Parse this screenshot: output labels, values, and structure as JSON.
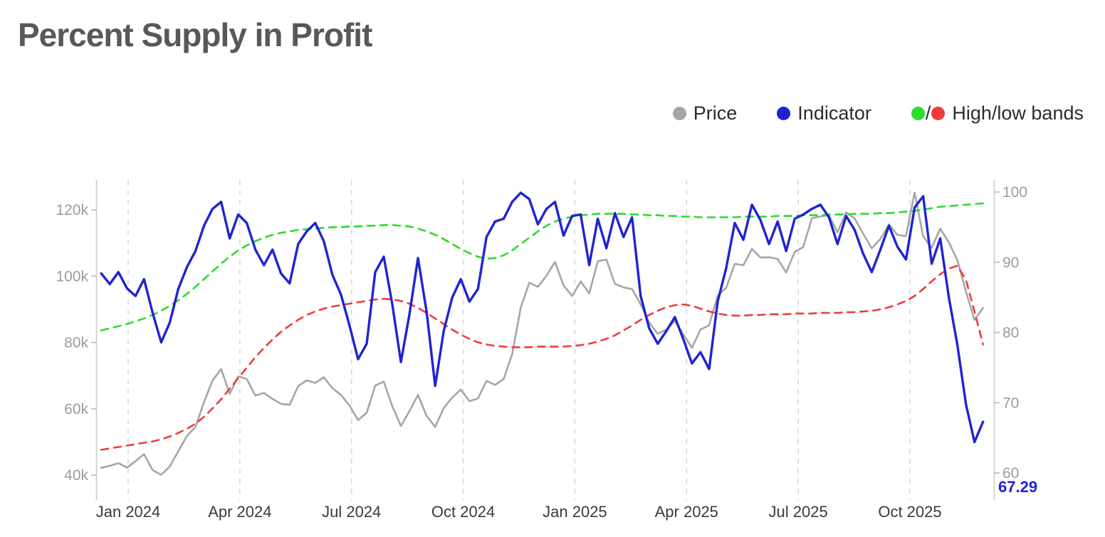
{
  "page": {
    "title": "Percent Supply in Profit",
    "background": "#ffffff"
  },
  "legend": {
    "items": [
      {
        "label": "Price",
        "color": "#a6a6a6"
      },
      {
        "label": "Indicator",
        "color": "#1f24cf"
      },
      {
        "label": "High/low bands",
        "separator": "/",
        "color_high": "#2bdc2b",
        "color_low": "#f03b3b"
      }
    ]
  },
  "chart_data": {
    "type": "line",
    "title": "Percent Supply in Profit",
    "x_start": "2023-12-10",
    "x_step_days": 7,
    "x_tick_labels": [
      "Jan 2024",
      "Apr 2024",
      "Jul 2024",
      "Oct 2024",
      "Jan 2025",
      "Apr 2025",
      "Jul 2025",
      "Oct 2025"
    ],
    "x_tick_month_offsets": [
      0,
      3,
      6,
      9,
      12,
      15,
      18,
      21
    ],
    "grid": {
      "vertical_dashed": true,
      "color": "#d8d8d8"
    },
    "left_axis": {
      "tick_labels": [
        "40k",
        "60k",
        "80k",
        "100k",
        "120k"
      ],
      "tick_values": [
        40,
        60,
        80,
        100,
        120
      ],
      "range": [
        38,
        128
      ]
    },
    "right_axis": {
      "tick_labels": [
        "60",
        "70",
        "80",
        "90",
        "100"
      ],
      "tick_values": [
        60,
        70,
        80,
        90,
        100
      ],
      "range": [
        58,
        102
      ]
    },
    "last_value": {
      "text": "67.29",
      "series": "Indicator"
    },
    "series": [
      {
        "name": "Price",
        "axis": "left",
        "color": "#a6a6a6",
        "style": "solid",
        "values": [
          42.2,
          42.8,
          43.6,
          42.3,
          44.2,
          46.3,
          41.5,
          40.1,
          42.6,
          47.2,
          51.8,
          54.5,
          62.0,
          68.5,
          72.0,
          64.5,
          69.8,
          69.0,
          64.0,
          64.8,
          63.0,
          61.5,
          61.2,
          66.8,
          68.6,
          67.8,
          69.5,
          66.2,
          64.2,
          61.0,
          56.6,
          58.8,
          67.0,
          68.2,
          60.8,
          54.8,
          59.3,
          64.2,
          57.9,
          54.5,
          60.2,
          63.4,
          65.8,
          62.3,
          63.1,
          68.4,
          67.2,
          69.0,
          76.5,
          90.5,
          98.0,
          96.8,
          100.1,
          104.3,
          97.2,
          94.0,
          98.4,
          94.8,
          104.5,
          105.0,
          97.7,
          96.6,
          96.1,
          91.5,
          86.0,
          82.6,
          83.9,
          86.5,
          82.4,
          78.4,
          83.9,
          85.2,
          94.2,
          96.5,
          103.7,
          103.3,
          108.2,
          105.6,
          105.7,
          105.2,
          101.1,
          107.3,
          108.8,
          117.5,
          118.0,
          118.4,
          113.2,
          119.2,
          117.4,
          112.8,
          108.4,
          111.2,
          115.6,
          112.4,
          112.1,
          125.2,
          112.0,
          108.6,
          114.3,
          110.2,
          104.8,
          95.4,
          86.8,
          90.4
        ]
      },
      {
        "name": "Indicator",
        "axis": "right",
        "color": "#1f24cf",
        "style": "solid",
        "values": [
          88.4,
          86.9,
          88.6,
          86.3,
          85.2,
          87.6,
          82.8,
          78.6,
          81.4,
          86.2,
          89.3,
          91.6,
          95.2,
          97.6,
          98.6,
          93.4,
          96.8,
          95.6,
          91.8,
          89.6,
          91.8,
          88.4,
          87.0,
          92.6,
          94.4,
          95.6,
          93.0,
          88.2,
          85.4,
          81.0,
          76.2,
          78.4,
          88.6,
          90.8,
          84.0,
          75.8,
          82.6,
          90.6,
          83.0,
          72.4,
          80.2,
          85.0,
          87.6,
          84.4,
          86.2,
          93.6,
          95.8,
          96.2,
          98.6,
          99.9,
          99.0,
          95.4,
          97.6,
          98.6,
          93.8,
          96.6,
          96.8,
          89.6,
          96.2,
          92.0,
          97.0,
          93.6,
          96.4,
          85.2,
          80.6,
          78.4,
          80.2,
          82.2,
          79.0,
          75.6,
          77.2,
          74.8,
          84.4,
          89.2,
          95.6,
          93.2,
          98.2,
          96.0,
          92.6,
          95.8,
          91.6,
          96.2,
          96.8,
          97.6,
          98.2,
          96.4,
          92.6,
          96.6,
          94.6,
          91.2,
          88.6,
          91.8,
          95.2,
          92.2,
          90.4,
          97.8,
          99.4,
          89.8,
          93.4,
          85.0,
          78.2,
          69.8,
          64.4,
          67.29
        ]
      },
      {
        "name": "High band",
        "axis": "right",
        "color": "#2bdc2b",
        "style": "dashed",
        "values": [
          80.3,
          80.6,
          80.9,
          81.2,
          81.6,
          82.0,
          82.5,
          83.1,
          83.8,
          84.6,
          85.5,
          86.5,
          87.6,
          88.7,
          89.8,
          90.8,
          91.7,
          92.4,
          93.0,
          93.5,
          93.9,
          94.2,
          94.4,
          94.6,
          94.7,
          94.8,
          94.9,
          95.0,
          95.0,
          95.1,
          95.1,
          95.2,
          95.2,
          95.3,
          95.3,
          95.2,
          95.1,
          94.8,
          94.4,
          93.9,
          93.3,
          92.6,
          91.9,
          91.3,
          90.8,
          90.5,
          90.6,
          91.0,
          91.7,
          92.6,
          93.5,
          94.4,
          95.2,
          95.8,
          96.2,
          96.5,
          96.7,
          96.8,
          96.9,
          96.9,
          96.9,
          96.9,
          96.8,
          96.8,
          96.7,
          96.7,
          96.6,
          96.6,
          96.5,
          96.5,
          96.4,
          96.4,
          96.4,
          96.4,
          96.4,
          96.5,
          96.5,
          96.5,
          96.5,
          96.6,
          96.6,
          96.6,
          96.7,
          96.7,
          96.7,
          96.8,
          96.8,
          96.8,
          96.9,
          96.9,
          96.9,
          97.0,
          97.0,
          97.1,
          97.2,
          97.3,
          97.5,
          97.7,
          97.9,
          98.0,
          98.1,
          98.2,
          98.3,
          98.4
        ]
      },
      {
        "name": "Low band",
        "axis": "right",
        "color": "#f03b3b",
        "style": "dashed",
        "values": [
          63.3,
          63.5,
          63.7,
          63.9,
          64.1,
          64.3,
          64.5,
          64.8,
          65.2,
          65.7,
          66.3,
          67.0,
          68.0,
          69.2,
          70.5,
          72.0,
          73.5,
          75.0,
          76.5,
          77.8,
          79.0,
          80.1,
          81.0,
          81.8,
          82.5,
          83.0,
          83.4,
          83.7,
          83.9,
          84.1,
          84.3,
          84.5,
          84.7,
          84.8,
          84.7,
          84.5,
          84.1,
          83.5,
          82.8,
          82.0,
          81.2,
          80.4,
          79.7,
          79.1,
          78.6,
          78.3,
          78.1,
          78.0,
          77.9,
          77.9,
          77.9,
          78.0,
          78.0,
          78.0,
          78.0,
          78.1,
          78.2,
          78.4,
          78.7,
          79.1,
          79.6,
          80.3,
          81.0,
          81.8,
          82.5,
          83.1,
          83.6,
          83.9,
          84.0,
          83.8,
          83.4,
          83.0,
          82.7,
          82.5,
          82.4,
          82.4,
          82.5,
          82.5,
          82.6,
          82.6,
          82.6,
          82.7,
          82.7,
          82.7,
          82.8,
          82.8,
          82.8,
          82.9,
          82.9,
          83.0,
          83.1,
          83.3,
          83.6,
          84.0,
          84.5,
          85.2,
          86.2,
          87.3,
          88.3,
          89.1,
          89.5,
          87.5,
          83.0,
          78.3
        ]
      }
    ]
  }
}
